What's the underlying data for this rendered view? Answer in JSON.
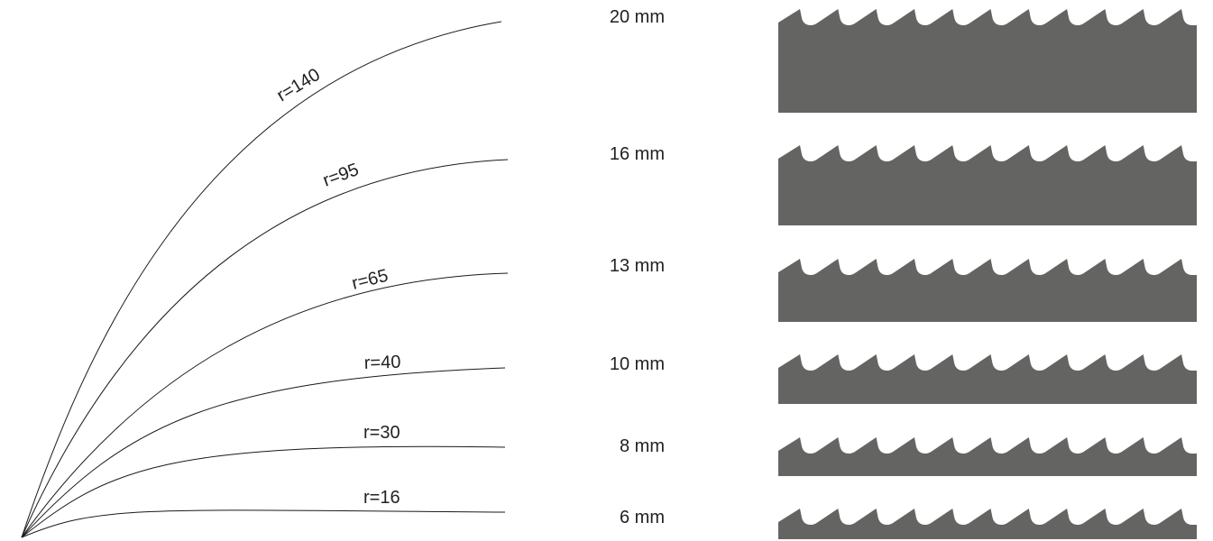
{
  "colors": {
    "blade": "#646462",
    "curve": "#1a1a1a",
    "text": "#222222",
    "background": "#ffffff"
  },
  "radius_curves": [
    {
      "label": "r=140"
    },
    {
      "label": "r=95"
    },
    {
      "label": "r=65"
    },
    {
      "label": "r=40"
    },
    {
      "label": "r=30"
    },
    {
      "label": "r=16"
    }
  ],
  "blades": [
    {
      "label": "20 mm",
      "width_mm": 20
    },
    {
      "label": "16 mm",
      "width_mm": 16
    },
    {
      "label": "13 mm",
      "width_mm": 13
    },
    {
      "label": "10 mm",
      "width_mm": 10
    },
    {
      "label": "8 mm",
      "width_mm": 8
    },
    {
      "label": "6 mm",
      "width_mm": 6
    }
  ]
}
